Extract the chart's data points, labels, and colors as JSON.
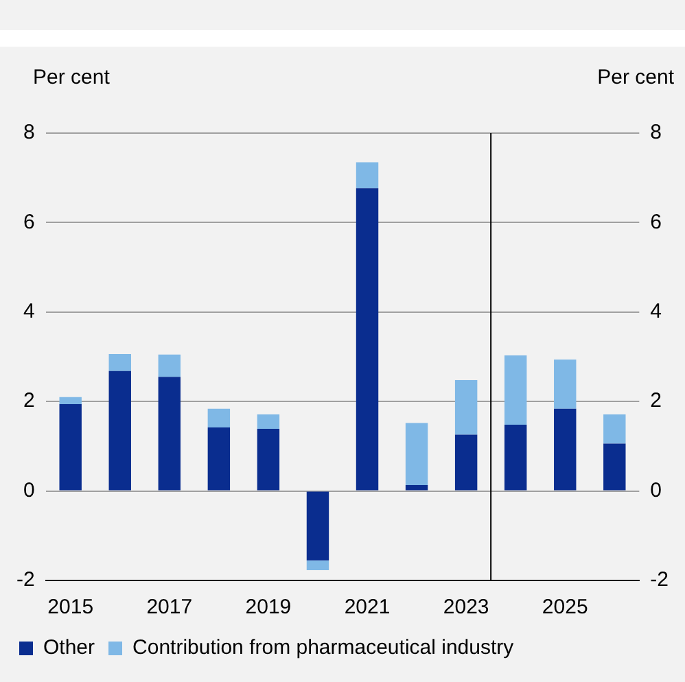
{
  "chart_data": {
    "type": "bar",
    "stacked": true,
    "ylabel": "Per cent",
    "y2label": "Per cent",
    "x": [
      2015,
      2016,
      2017,
      2018,
      2019,
      2020,
      2021,
      2022,
      2023,
      2024,
      2025,
      2026
    ],
    "xlim": [
      2014.5,
      2026.5
    ],
    "xticks": [
      2015,
      2017,
      2019,
      2021,
      2023,
      2025
    ],
    "ylim": [
      -2,
      8
    ],
    "yticks": [
      -2,
      0,
      2,
      4,
      6,
      8
    ],
    "y2lim": [
      -2,
      8
    ],
    "y2ticks": [
      -2,
      0,
      2,
      4,
      6,
      8
    ],
    "series": [
      {
        "name": "Other",
        "color": "#0a2d8f",
        "values": [
          1.94,
          2.68,
          2.55,
          1.42,
          1.39,
          -1.55,
          6.77,
          0.13,
          1.26,
          1.48,
          1.84,
          1.06
        ]
      },
      {
        "name": "Contribution from pharmaceutical industry",
        "color": "#7fb8e6",
        "values": [
          0.16,
          0.38,
          0.5,
          0.42,
          0.32,
          -0.22,
          0.58,
          1.39,
          1.22,
          1.55,
          1.1,
          0.65
        ]
      }
    ],
    "ref_lines": [
      {
        "axis": "x",
        "value": 2023.5,
        "color": "#000000"
      }
    ],
    "grid": "y",
    "legend": "bottom"
  }
}
